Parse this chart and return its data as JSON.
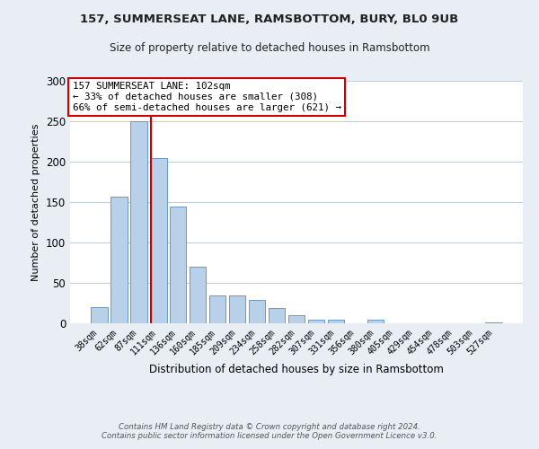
{
  "title": "157, SUMMERSEAT LANE, RAMSBOTTOM, BURY, BL0 9UB",
  "subtitle": "Size of property relative to detached houses in Ramsbottom",
  "xlabel": "Distribution of detached houses by size in Ramsbottom",
  "ylabel": "Number of detached properties",
  "bin_labels": [
    "38sqm",
    "62sqm",
    "87sqm",
    "111sqm",
    "136sqm",
    "160sqm",
    "185sqm",
    "209sqm",
    "234sqm",
    "258sqm",
    "282sqm",
    "307sqm",
    "331sqm",
    "356sqm",
    "380sqm",
    "405sqm",
    "429sqm",
    "454sqm",
    "478sqm",
    "503sqm",
    "527sqm"
  ],
  "bar_heights": [
    20,
    157,
    250,
    204,
    145,
    70,
    35,
    35,
    29,
    19,
    10,
    5,
    5,
    0,
    4,
    0,
    0,
    0,
    0,
    0,
    1
  ],
  "bar_color": "#b8d0e8",
  "bar_edge_color": "#6699cc",
  "vline_color": "#cc0000",
  "ylim": [
    0,
    300
  ],
  "yticks": [
    0,
    50,
    100,
    150,
    200,
    250,
    300
  ],
  "annotation_text": "157 SUMMERSEAT LANE: 102sqm\n← 33% of detached houses are smaller (308)\n66% of semi-detached houses are larger (621) →",
  "annotation_box_color": "#ffffff",
  "annotation_box_edge_color": "#cc0000",
  "footer_text": "Contains HM Land Registry data © Crown copyright and database right 2024.\nContains public sector information licensed under the Open Government Licence v3.0.",
  "background_color": "#e8eef4",
  "plot_bg_color": "#ffffff",
  "grid_color": "#c0cfe0"
}
